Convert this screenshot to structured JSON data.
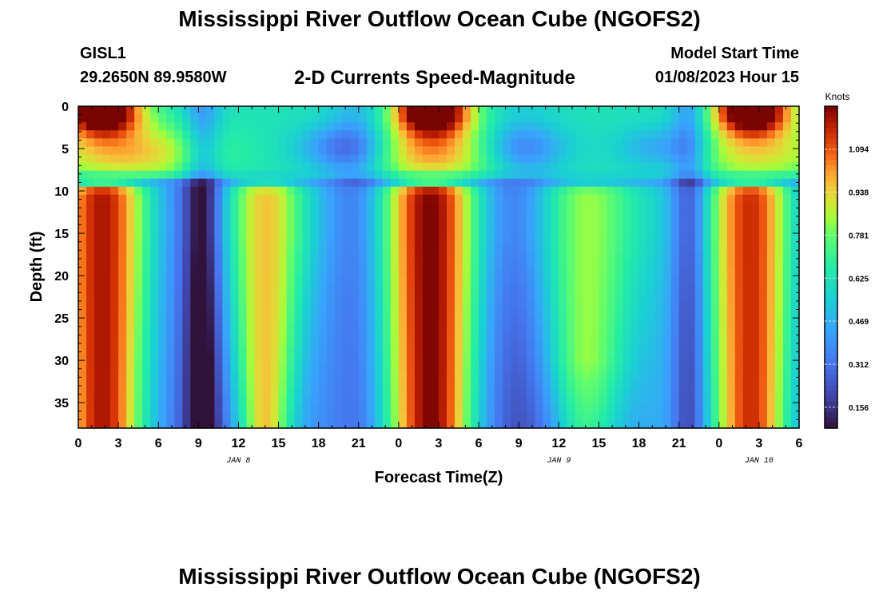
{
  "header": {
    "title": "Mississippi River Outflow Ocean Cube (NGOFS2)",
    "station_id": "GISL1",
    "station_coords": "29.2650N  89.9580W",
    "subtitle": "2-D Currents Speed-Magnitude",
    "model_start_label": "Model Start Time",
    "model_start_value": "01/08/2023 Hour 15"
  },
  "footer": {
    "title": "Mississippi River Outflow Ocean Cube (NGOFS2)"
  },
  "chart_data": {
    "type": "heatmap",
    "title": "2-D Currents Speed-Magnitude",
    "xlabel": "Forecast Time(Z)",
    "ylabel": "Depth (ft)",
    "x_tick_labels": [
      "0",
      "3",
      "6",
      "9",
      "12",
      "15",
      "18",
      "21",
      "0",
      "3",
      "6",
      "9",
      "12",
      "15",
      "18",
      "21",
      "0",
      "3",
      "6"
    ],
    "x_hours_range": [
      0,
      54
    ],
    "day_labels": [
      {
        "label": "JAN 8",
        "hour": 12
      },
      {
        "label": "JAN 9",
        "hour": 36
      },
      {
        "label": "JAN 10",
        "hour": 51
      }
    ],
    "y_ticks": [
      0,
      5,
      10,
      15,
      20,
      25,
      30,
      35
    ],
    "y_tick_labels": [
      "0",
      "5",
      "10",
      "15",
      "20",
      "25",
      "30",
      "35"
    ],
    "ylim": [
      0,
      38
    ],
    "y_inverted": true,
    "colorbar": {
      "unit": "Knots",
      "range": [
        0.08,
        1.25
      ],
      "tick_values": [
        0.156,
        0.312,
        0.469,
        0.625,
        0.781,
        0.938,
        1.094
      ],
      "tick_labels": [
        "0.156",
        "0.312",
        "0.469",
        "0.625",
        "0.781",
        "0.938",
        "1.094"
      ],
      "colormap": "turbo"
    },
    "field_summary": {
      "deep_max_hours": [
        1.5,
        14,
        2.0,
        13.5,
        3.0
      ],
      "max_speed_knots": 1.2,
      "min_speed_knots": 0.1,
      "slack_hours": [
        9,
        21,
        33,
        45
      ]
    }
  }
}
